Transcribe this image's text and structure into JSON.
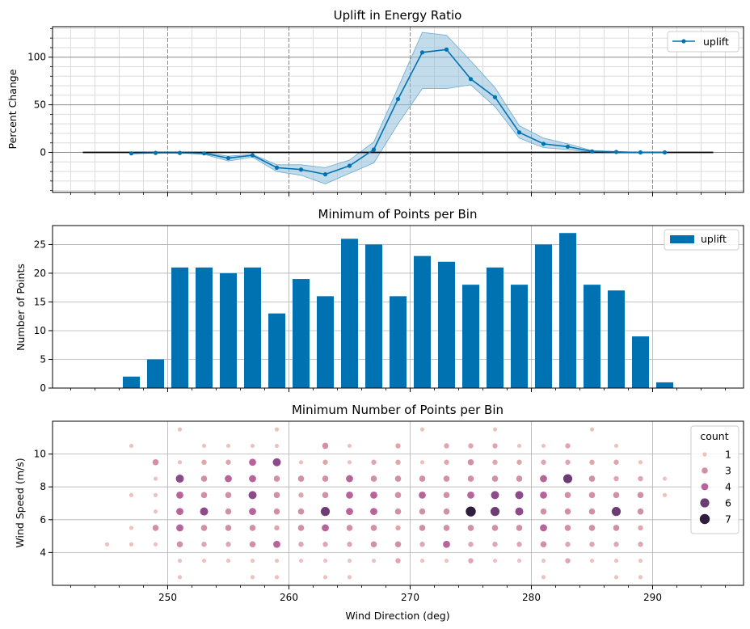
{
  "chart_data": [
    {
      "type": "line",
      "title": "Uplift in Energy Ratio",
      "xlabel": "",
      "ylabel": "Percent Change",
      "xlim": [
        240.5,
        297.5
      ],
      "ylim": [
        -42,
        132
      ],
      "yticks": [
        0,
        50,
        100
      ],
      "grid": true,
      "minor_grid": true,
      "legend_position": "upper right",
      "zero_line": {
        "x": [
          243,
          295
        ],
        "y": 0
      },
      "series": [
        {
          "name": "uplift",
          "color": "#0072b2",
          "x": [
            247,
            249,
            251,
            253,
            255,
            257,
            259,
            261,
            263,
            265,
            267,
            269,
            271,
            273,
            275,
            277,
            279,
            281,
            283,
            285,
            287,
            289,
            291
          ],
          "y": [
            -1,
            -0.5,
            -0.5,
            -1,
            -6,
            -3,
            -16,
            -18,
            -23,
            -14,
            3,
            56,
            105,
            108,
            77,
            58,
            21,
            9,
            6,
            1,
            0.5,
            0,
            0
          ],
          "ci_low": [
            -1,
            -0.5,
            -0.5,
            -2,
            -9,
            -5,
            -20,
            -24,
            -33,
            -22,
            -11,
            30,
            67,
            67,
            71,
            48,
            15,
            5,
            3,
            0,
            0,
            0,
            0
          ],
          "ci_high": [
            -1,
            -0.5,
            -0.5,
            0,
            -4,
            -2,
            -13,
            -13,
            -16,
            -8,
            11,
            68,
            126,
            123,
            96,
            68,
            28,
            15,
            9,
            2,
            1,
            0,
            0
          ]
        }
      ]
    },
    {
      "type": "bar",
      "title": "Minimum of Points per Bin",
      "xlabel": "",
      "ylabel": "Number of Points",
      "xlim": [
        240.5,
        297.5
      ],
      "ylim": [
        0,
        28.3
      ],
      "yticks": [
        0,
        5,
        10,
        15,
        20,
        25
      ],
      "grid": true,
      "legend_position": "upper right",
      "series": [
        {
          "name": "uplift",
          "color": "#0072b2",
          "x": [
            247,
            249,
            251,
            253,
            255,
            257,
            259,
            261,
            263,
            265,
            267,
            269,
            271,
            273,
            275,
            277,
            279,
            281,
            283,
            285,
            287,
            289,
            291
          ],
          "values": [
            2,
            5,
            21,
            21,
            20,
            21,
            13,
            19,
            16,
            26,
            25,
            16,
            23,
            22,
            18,
            21,
            18,
            25,
            27,
            18,
            17,
            9,
            1
          ]
        }
      ]
    },
    {
      "type": "scatter",
      "title": "Minimum Number of Points per Bin",
      "xlabel": "Wind Direction (deg)",
      "ylabel": "Wind Speed (m/s)",
      "xlim": [
        240.5,
        297.5
      ],
      "ylim": [
        2,
        12
      ],
      "xticks": [
        250,
        260,
        270,
        280,
        290
      ],
      "yticks": [
        4,
        6,
        8,
        10
      ],
      "grid": true,
      "legend_title": "count",
      "legend_position": "upper right",
      "legend": [
        {
          "label": "1",
          "count": 1
        },
        {
          "label": "3",
          "count": 3
        },
        {
          "label": "4",
          "count": 4
        },
        {
          "label": "6",
          "count": 6
        },
        {
          "label": "7",
          "count": 7
        }
      ],
      "color_map": {
        "1": "#eac3c0",
        "2": "#dfa6b0",
        "3": "#d48fa5",
        "4": "#b7649a",
        "5": "#8e4b8a",
        "6": "#6e3c74",
        "7": "#2d1e3e"
      },
      "points": [
        [
          245,
          4.5,
          1
        ],
        [
          247,
          4.5,
          1
        ],
        [
          247,
          5.5,
          1
        ],
        [
          247,
          7.5,
          1
        ],
        [
          247,
          10.5,
          1
        ],
        [
          249,
          4.5,
          1
        ],
        [
          249,
          5.5,
          3
        ],
        [
          249,
          6.5,
          1
        ],
        [
          249,
          7.5,
          1
        ],
        [
          249,
          8.5,
          1
        ],
        [
          249,
          9.5,
          3
        ],
        [
          251,
          2.5,
          1
        ],
        [
          251,
          3.5,
          1
        ],
        [
          251,
          4.5,
          3
        ],
        [
          251,
          5.5,
          4
        ],
        [
          251,
          6.5,
          4
        ],
        [
          251,
          7.5,
          4
        ],
        [
          251,
          8.5,
          5
        ],
        [
          251,
          9.5,
          1
        ],
        [
          251,
          11.5,
          1
        ],
        [
          253,
          3.5,
          1
        ],
        [
          253,
          4.5,
          2
        ],
        [
          253,
          5.5,
          3
        ],
        [
          253,
          6.5,
          5
        ],
        [
          253,
          7.5,
          3
        ],
        [
          253,
          8.5,
          3
        ],
        [
          253,
          9.5,
          2
        ],
        [
          253,
          10.5,
          1
        ],
        [
          255,
          3.5,
          1
        ],
        [
          255,
          4.5,
          2
        ],
        [
          255,
          5.5,
          3
        ],
        [
          255,
          6.5,
          3
        ],
        [
          255,
          7.5,
          3
        ],
        [
          255,
          8.5,
          4
        ],
        [
          255,
          9.5,
          2
        ],
        [
          255,
          10.5,
          1
        ],
        [
          257,
          2.5,
          1
        ],
        [
          257,
          3.5,
          1
        ],
        [
          257,
          4.5,
          3
        ],
        [
          257,
          5.5,
          3
        ],
        [
          257,
          6.5,
          4
        ],
        [
          257,
          7.5,
          5
        ],
        [
          257,
          8.5,
          4
        ],
        [
          257,
          9.5,
          4
        ],
        [
          257,
          10.5,
          1
        ],
        [
          259,
          2.5,
          1
        ],
        [
          259,
          3.5,
          1
        ],
        [
          259,
          4.5,
          4
        ],
        [
          259,
          5.5,
          2
        ],
        [
          259,
          6.5,
          3
        ],
        [
          259,
          7.5,
          3
        ],
        [
          259,
          8.5,
          3
        ],
        [
          259,
          9.5,
          5
        ],
        [
          259,
          10.5,
          1
        ],
        [
          259,
          11.5,
          1
        ],
        [
          261,
          3.5,
          1
        ],
        [
          261,
          4.5,
          2
        ],
        [
          261,
          5.5,
          3
        ],
        [
          261,
          6.5,
          3
        ],
        [
          261,
          7.5,
          2
        ],
        [
          261,
          8.5,
          3
        ],
        [
          261,
          9.5,
          1
        ],
        [
          263,
          2.5,
          1
        ],
        [
          263,
          3.5,
          1
        ],
        [
          263,
          4.5,
          2
        ],
        [
          263,
          5.5,
          4
        ],
        [
          263,
          6.5,
          6
        ],
        [
          263,
          7.5,
          3
        ],
        [
          263,
          8.5,
          3
        ],
        [
          263,
          9.5,
          2
        ],
        [
          263,
          10.5,
          3
        ],
        [
          265,
          2.5,
          1
        ],
        [
          265,
          3.5,
          1
        ],
        [
          265,
          4.5,
          2
        ],
        [
          265,
          5.5,
          3
        ],
        [
          265,
          6.5,
          4
        ],
        [
          265,
          7.5,
          4
        ],
        [
          265,
          8.5,
          4
        ],
        [
          265,
          9.5,
          1
        ],
        [
          265,
          10.5,
          1
        ],
        [
          267,
          3.5,
          1
        ],
        [
          267,
          4.5,
          3
        ],
        [
          267,
          5.5,
          3
        ],
        [
          267,
          6.5,
          4
        ],
        [
          267,
          7.5,
          4
        ],
        [
          267,
          8.5,
          3
        ],
        [
          267,
          9.5,
          2
        ],
        [
          269,
          3.5,
          2
        ],
        [
          269,
          4.5,
          3
        ],
        [
          269,
          5.5,
          2
        ],
        [
          269,
          6.5,
          3
        ],
        [
          269,
          7.5,
          3
        ],
        [
          269,
          8.5,
          3
        ],
        [
          269,
          9.5,
          2
        ],
        [
          269,
          10.5,
          2
        ],
        [
          271,
          3.5,
          1
        ],
        [
          271,
          4.5,
          2
        ],
        [
          271,
          5.5,
          3
        ],
        [
          271,
          6.5,
          3
        ],
        [
          271,
          7.5,
          4
        ],
        [
          271,
          8.5,
          3
        ],
        [
          271,
          9.5,
          1
        ],
        [
          271,
          11.5,
          1
        ],
        [
          273,
          3.5,
          1
        ],
        [
          273,
          4.5,
          4
        ],
        [
          273,
          5.5,
          3
        ],
        [
          273,
          6.5,
          3
        ],
        [
          273,
          7.5,
          3
        ],
        [
          273,
          8.5,
          3
        ],
        [
          273,
          9.5,
          2
        ],
        [
          273,
          10.5,
          2
        ],
        [
          275,
          3.5,
          2
        ],
        [
          275,
          4.5,
          2
        ],
        [
          275,
          5.5,
          3
        ],
        [
          275,
          6.5,
          7
        ],
        [
          275,
          7.5,
          4
        ],
        [
          275,
          8.5,
          3
        ],
        [
          275,
          9.5,
          3
        ],
        [
          275,
          10.5,
          2
        ],
        [
          277,
          3.5,
          1
        ],
        [
          277,
          4.5,
          2
        ],
        [
          277,
          5.5,
          3
        ],
        [
          277,
          6.5,
          6
        ],
        [
          277,
          7.5,
          5
        ],
        [
          277,
          8.5,
          3
        ],
        [
          277,
          9.5,
          2
        ],
        [
          277,
          10.5,
          2
        ],
        [
          277,
          11.5,
          1
        ],
        [
          279,
          3.5,
          1
        ],
        [
          279,
          4.5,
          2
        ],
        [
          279,
          5.5,
          3
        ],
        [
          279,
          6.5,
          5
        ],
        [
          279,
          7.5,
          5
        ],
        [
          279,
          8.5,
          3
        ],
        [
          279,
          9.5,
          2
        ],
        [
          279,
          10.5,
          1
        ],
        [
          281,
          2.5,
          1
        ],
        [
          281,
          3.5,
          1
        ],
        [
          281,
          4.5,
          3
        ],
        [
          281,
          5.5,
          4
        ],
        [
          281,
          6.5,
          3
        ],
        [
          281,
          7.5,
          4
        ],
        [
          281,
          8.5,
          4
        ],
        [
          281,
          9.5,
          2
        ],
        [
          281,
          10.5,
          1
        ],
        [
          283,
          3.5,
          2
        ],
        [
          283,
          4.5,
          2
        ],
        [
          283,
          5.5,
          3
        ],
        [
          283,
          6.5,
          3
        ],
        [
          283,
          7.5,
          3
        ],
        [
          283,
          8.5,
          6
        ],
        [
          283,
          9.5,
          2
        ],
        [
          283,
          10.5,
          2
        ],
        [
          285,
          3.5,
          1
        ],
        [
          285,
          4.5,
          2
        ],
        [
          285,
          5.5,
          3
        ],
        [
          285,
          6.5,
          3
        ],
        [
          285,
          7.5,
          3
        ],
        [
          285,
          8.5,
          3
        ],
        [
          285,
          9.5,
          2
        ],
        [
          285,
          11.5,
          1
        ],
        [
          287,
          2.5,
          1
        ],
        [
          287,
          3.5,
          1
        ],
        [
          287,
          4.5,
          2
        ],
        [
          287,
          5.5,
          3
        ],
        [
          287,
          6.5,
          6
        ],
        [
          287,
          7.5,
          3
        ],
        [
          287,
          8.5,
          2
        ],
        [
          287,
          9.5,
          2
        ],
        [
          287,
          10.5,
          1
        ],
        [
          289,
          2.5,
          1
        ],
        [
          289,
          3.5,
          1
        ],
        [
          289,
          4.5,
          2
        ],
        [
          289,
          5.5,
          2
        ],
        [
          289,
          6.5,
          3
        ],
        [
          289,
          7.5,
          3
        ],
        [
          289,
          8.5,
          2
        ],
        [
          289,
          9.5,
          1
        ],
        [
          291,
          7.5,
          1
        ],
        [
          291,
          8.5,
          1
        ]
      ]
    }
  ]
}
